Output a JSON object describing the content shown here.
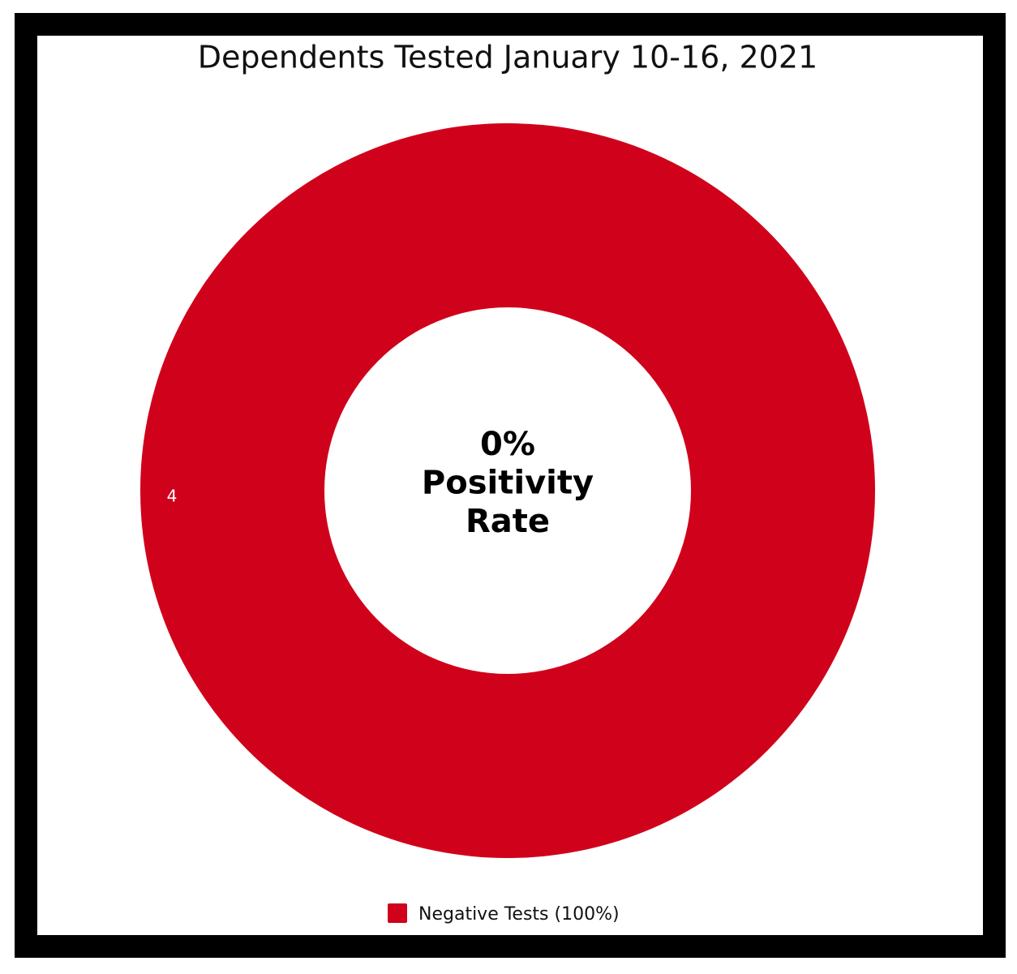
{
  "chart_data": {
    "type": "donut",
    "title": "Dependents Tested January 10-16, 2021",
    "center_text": [
      "0%",
      "Positivity",
      "Rate"
    ],
    "categories": [
      "Negative Tests (100%)"
    ],
    "values": [
      4
    ],
    "colors": [
      "#d0021b"
    ],
    "legend": "bottom"
  }
}
